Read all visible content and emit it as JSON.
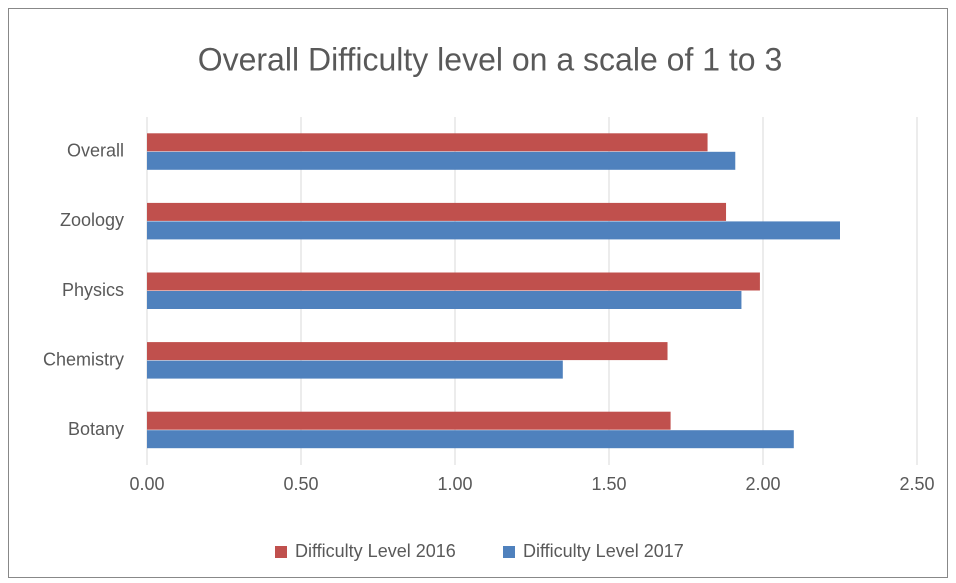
{
  "chart_data": {
    "type": "bar",
    "orientation": "horizontal",
    "title": "Overall Difficulty level on a scale of 1 to 3",
    "categories": [
      "Botany",
      "Chemistry",
      "Physics",
      "Zoology",
      "Overall"
    ],
    "series": [
      {
        "name": "Difficulty Level 2016",
        "color": "#c0504d",
        "values": [
          1.7,
          1.69,
          1.99,
          1.88,
          1.82
        ]
      },
      {
        "name": "Difficulty Level 2017",
        "color": "#4f81bd",
        "values": [
          2.1,
          1.35,
          1.93,
          2.25,
          1.91
        ]
      }
    ],
    "xlim": [
      0,
      2.5
    ],
    "xticks": [
      {
        "value": 0,
        "label": "0.00"
      },
      {
        "value": 0.5,
        "label": "0.50"
      },
      {
        "value": 1,
        "label": "1.00"
      },
      {
        "value": 1.5,
        "label": "1.50"
      },
      {
        "value": 2,
        "label": "2.00"
      },
      {
        "value": 2.5,
        "label": "2.50"
      }
    ],
    "grid": true,
    "legend": "bottom"
  }
}
